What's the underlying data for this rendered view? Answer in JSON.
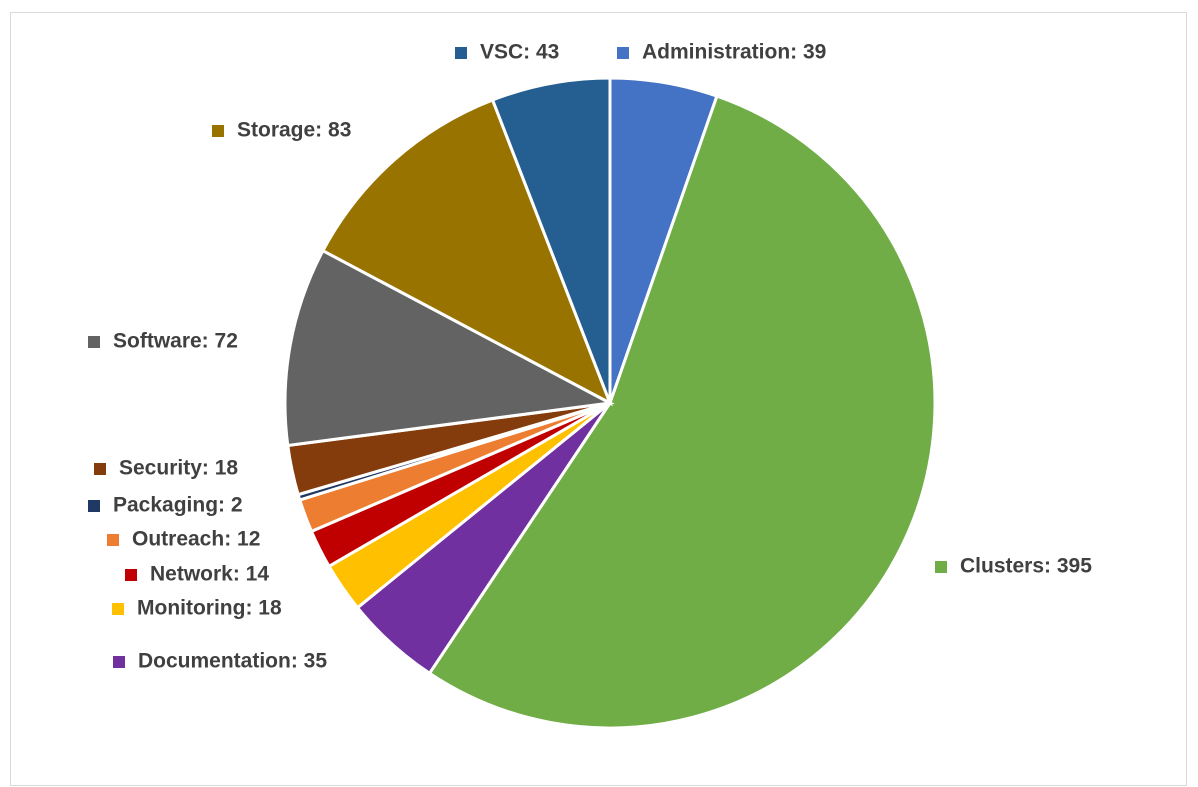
{
  "chart_data": {
    "type": "pie",
    "categories": [
      "Administration: 39",
      "Clusters: 395",
      "Documentation: 35",
      "Monitoring: 18",
      "Network: 14",
      "Outreach: 12",
      "Packaging: 2",
      "Security: 18",
      "Software: 72",
      "Storage: 83",
      "VSC: 43"
    ],
    "values": [
      39,
      395,
      35,
      18,
      14,
      12,
      2,
      18,
      72,
      83,
      43
    ],
    "colors": [
      "#4472c4",
      "#70ad47",
      "#7030a0",
      "#ffc000",
      "#c00000",
      "#ed7d31",
      "#203864",
      "#843c0c",
      "#636363",
      "#997300",
      "#255e91"
    ]
  }
}
